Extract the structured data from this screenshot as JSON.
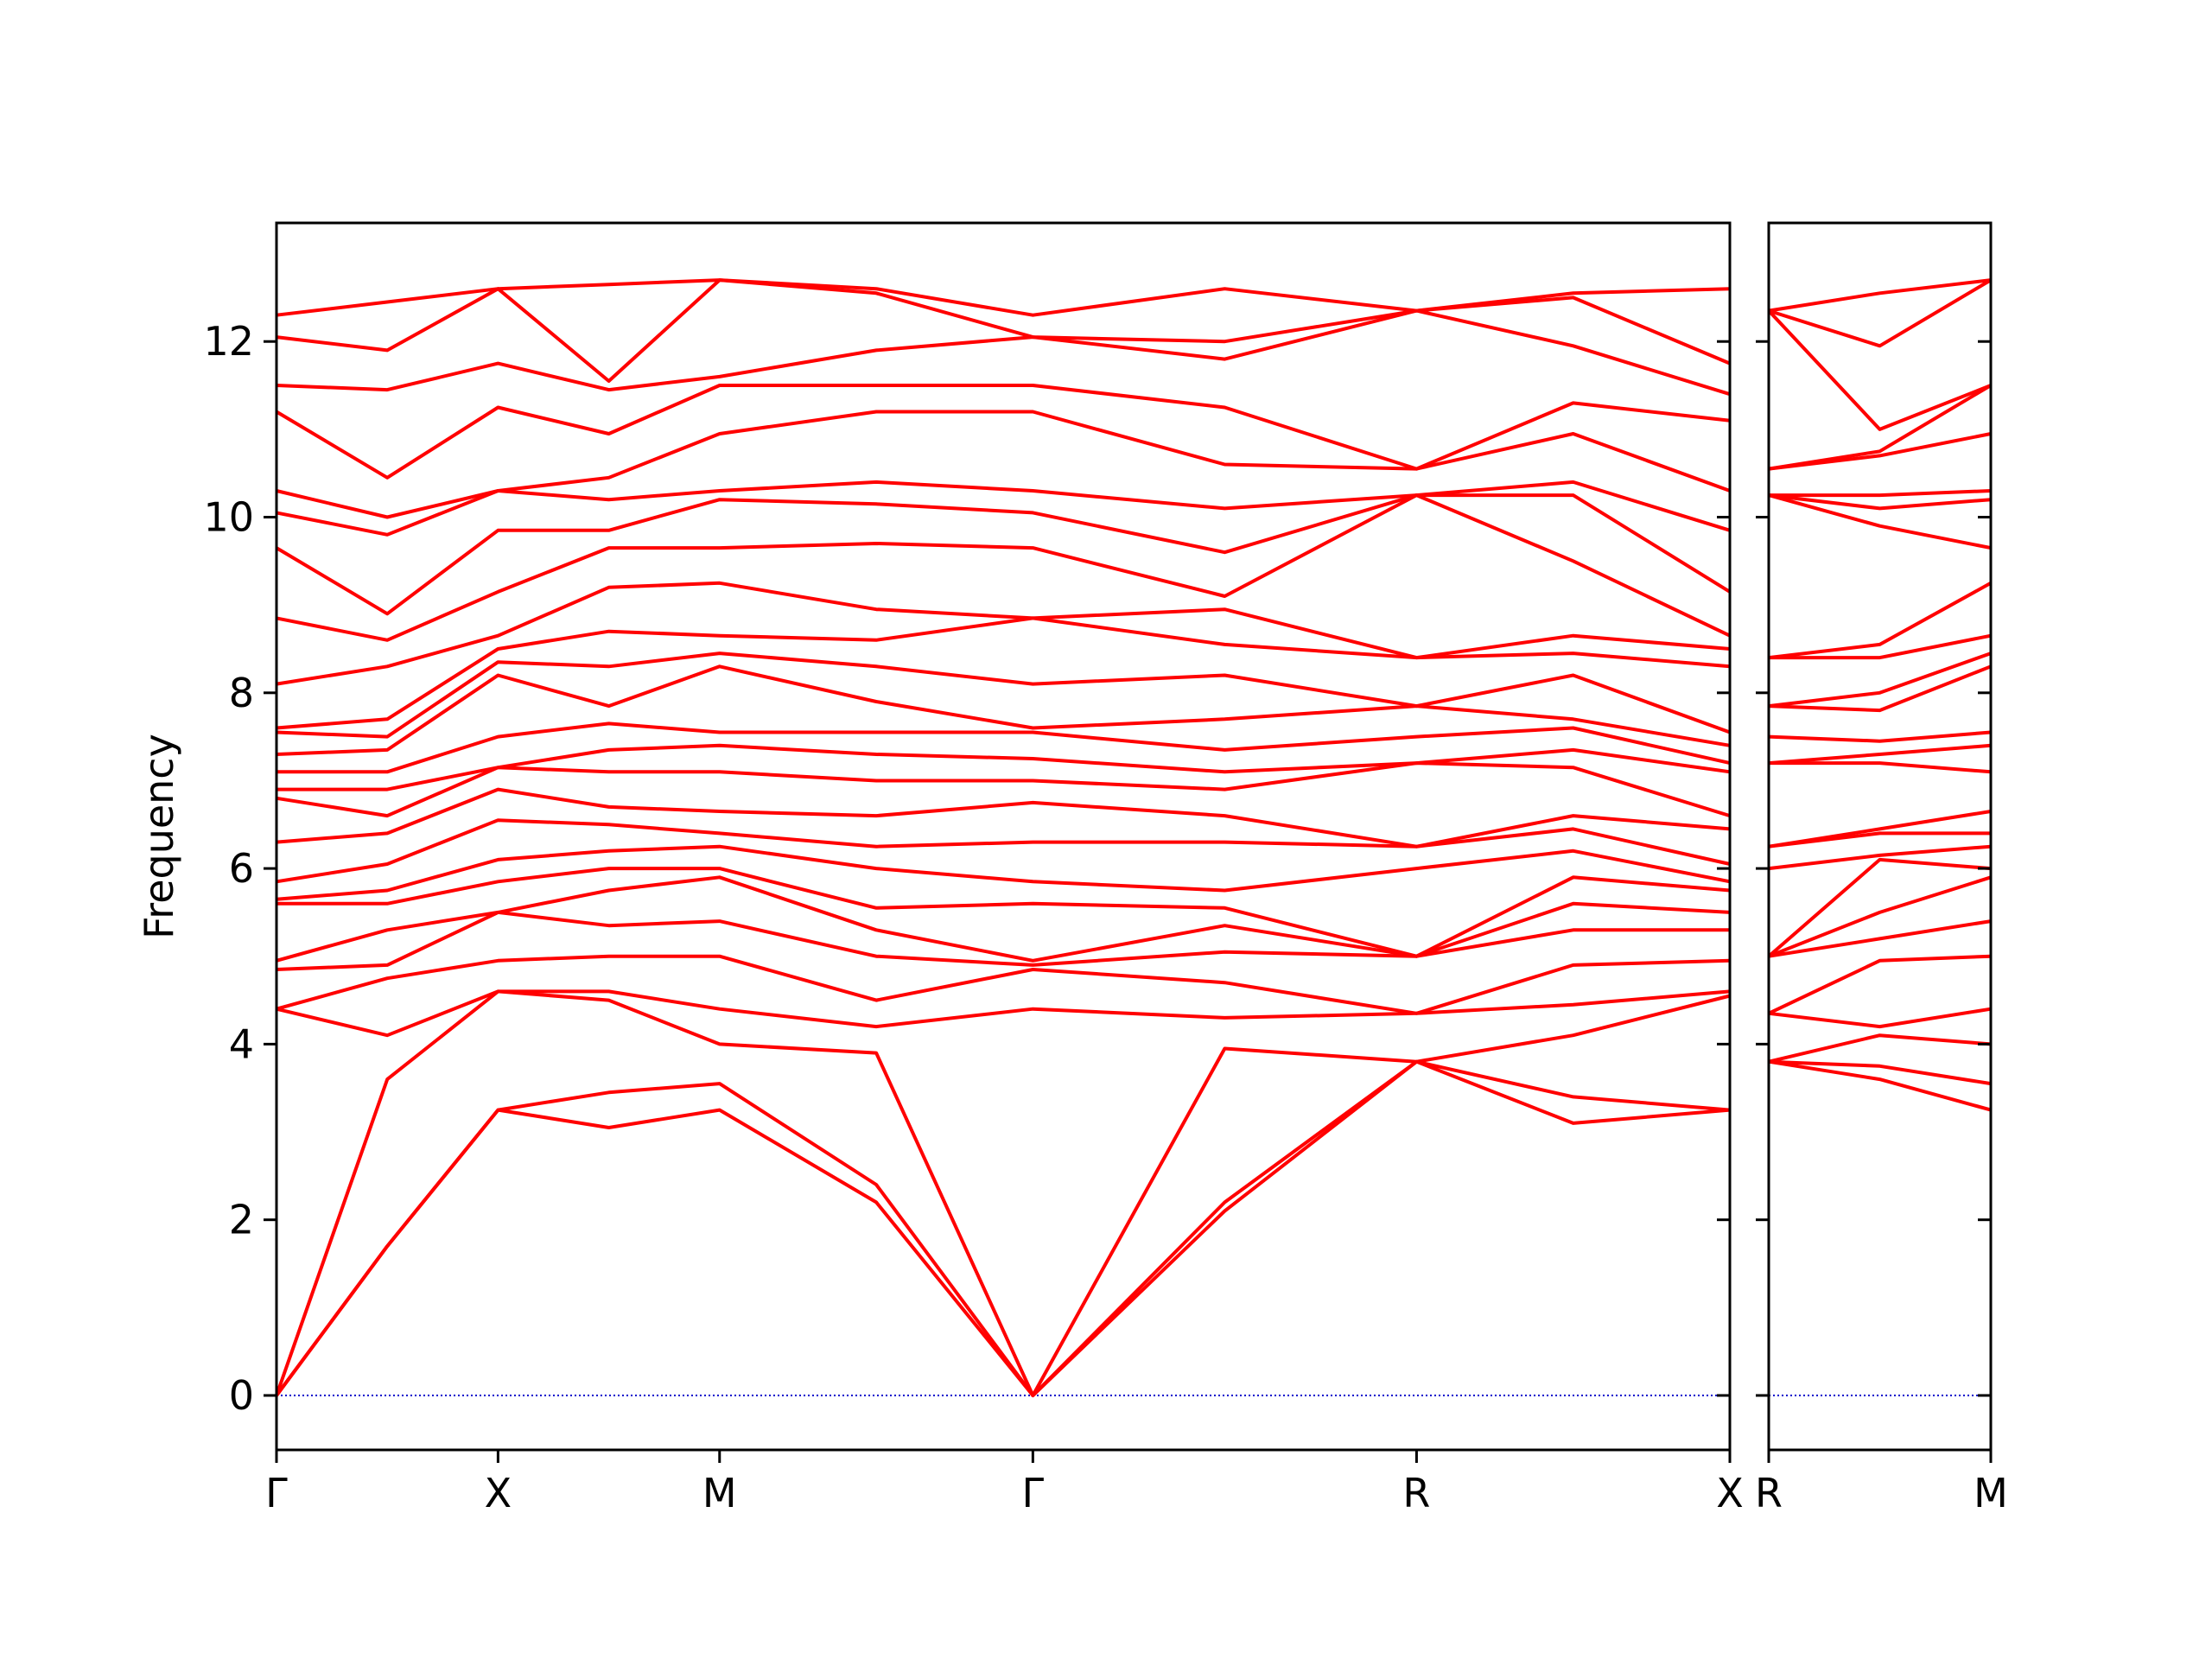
{
  "chart_data": [
    {
      "type": "line",
      "ylabel": "Frequency",
      "color": "#ff0000",
      "hline": 0,
      "hline_color": "#0000cc",
      "xlim": [
        0,
        3.2802
      ],
      "ylim": [
        -0.62,
        13.35
      ],
      "yticks": [
        0,
        2,
        4,
        6,
        8,
        10,
        12
      ],
      "xticks": [
        {
          "value": 0,
          "label": "Γ"
        },
        {
          "value": 0.5,
          "label": "X"
        },
        {
          "value": 1.0,
          "label": "M"
        },
        {
          "value": 1.7071,
          "label": "Γ"
        },
        {
          "value": 2.5731,
          "label": "R"
        },
        {
          "value": 3.2802,
          "label": "X"
        }
      ],
      "x": [
        0,
        0.25,
        0.5,
        0.75,
        1.0,
        1.3536,
        1.7071,
        2.1401,
        2.5731,
        2.9267,
        3.2802
      ],
      "values": [
        [
          0,
          0,
          0,
          4.4,
          4.4,
          4.85,
          4.95,
          5.6,
          5.65,
          5.85,
          6.3,
          6.8,
          6.9,
          7.1,
          7.3,
          7.55,
          7.6,
          8.1,
          8.85,
          9.65,
          10.05,
          10.3,
          11.2,
          11.5,
          12.05,
          12.3
        ],
        [
          1.7,
          1.7,
          3.6,
          4.1,
          4.75,
          4.9,
          5.3,
          5.6,
          5.75,
          6.05,
          6.4,
          6.6,
          6.9,
          7.1,
          7.35,
          7.5,
          7.7,
          8.3,
          8.6,
          8.9,
          9.8,
          10.0,
          10.45,
          11.45,
          11.9,
          12.45
        ],
        [
          3.25,
          3.25,
          4.6,
          4.6,
          4.95,
          5.5,
          5.5,
          5.85,
          6.1,
          6.55,
          6.9,
          7.15,
          7.15,
          7.5,
          8.2,
          8.35,
          8.5,
          8.65,
          9.15,
          9.85,
          10.3,
          10.3,
          11.25,
          11.75,
          12.6,
          12.6
        ],
        [
          3.05,
          3.45,
          4.5,
          4.6,
          5.0,
          5.35,
          5.75,
          6.0,
          6.2,
          6.5,
          6.7,
          7.1,
          7.35,
          7.65,
          7.85,
          8.3,
          8.7,
          9.2,
          9.65,
          9.85,
          10.2,
          10.45,
          10.95,
          11.45,
          11.55,
          12.65
        ],
        [
          3.25,
          3.55,
          4.0,
          4.4,
          5.0,
          5.4,
          5.9,
          6.0,
          6.25,
          6.4,
          6.65,
          7.1,
          7.4,
          7.55,
          8.3,
          8.45,
          8.65,
          9.25,
          9.65,
          10.2,
          10.3,
          10.95,
          11.5,
          11.6,
          12.7,
          12.7
        ],
        [
          2.2,
          2.4,
          3.9,
          4.2,
          4.5,
          5.0,
          5.3,
          5.55,
          6.0,
          6.25,
          6.6,
          7.0,
          7.3,
          7.55,
          7.9,
          8.3,
          8.6,
          8.95,
          9.7,
          10.15,
          10.4,
          11.2,
          11.5,
          11.9,
          12.55,
          12.6
        ],
        [
          0,
          0,
          0,
          4.4,
          4.85,
          4.9,
          4.95,
          5.6,
          5.85,
          6.3,
          6.75,
          7.0,
          7.25,
          7.55,
          7.6,
          8.1,
          8.85,
          8.85,
          9.65,
          10.05,
          10.3,
          11.2,
          11.5,
          12.05,
          12.05,
          12.3
        ],
        [
          2.1,
          2.2,
          3.95,
          4.3,
          4.7,
          5.05,
          5.35,
          5.55,
          5.75,
          6.3,
          6.6,
          6.9,
          7.1,
          7.35,
          7.7,
          8.2,
          8.55,
          8.95,
          9.1,
          9.6,
          10.1,
          10.6,
          11.25,
          11.8,
          12.0,
          12.6
        ],
        [
          3.8,
          3.8,
          3.8,
          4.35,
          4.35,
          5.0,
          5.0,
          5.0,
          6.0,
          6.25,
          6.25,
          7.2,
          7.2,
          7.5,
          7.85,
          7.85,
          8.4,
          8.4,
          10.25,
          10.25,
          10.25,
          10.55,
          10.55,
          12.35,
          12.35,
          12.35
        ],
        [
          3.1,
          3.4,
          4.1,
          4.45,
          4.9,
          5.3,
          5.6,
          5.9,
          6.2,
          6.45,
          6.6,
          7.15,
          7.35,
          7.6,
          7.7,
          8.2,
          8.45,
          8.65,
          9.5,
          10.25,
          10.4,
          10.95,
          11.3,
          11.95,
          12.5,
          12.55
        ],
        [
          3.25,
          3.25,
          4.55,
          4.6,
          4.95,
          5.3,
          5.5,
          5.75,
          5.85,
          6.05,
          6.45,
          6.6,
          7.1,
          7.2,
          7.4,
          7.55,
          8.3,
          8.5,
          8.65,
          9.15,
          9.85,
          10.3,
          11.1,
          11.4,
          11.75,
          12.6
        ]
      ]
    },
    {
      "type": "line",
      "color": "#ff0000",
      "hline": 0,
      "hline_color": "#0000cc",
      "xlim": [
        0,
        0.5
      ],
      "ylim": [
        -0.62,
        13.35
      ],
      "yticks": [
        0,
        2,
        4,
        6,
        8,
        10,
        12
      ],
      "xticks": [
        {
          "value": 0,
          "label": "R"
        },
        {
          "value": 0.5,
          "label": "M"
        }
      ],
      "x": [
        0,
        0.25,
        0.5
      ],
      "values": [
        [
          3.8,
          3.8,
          3.8,
          4.35,
          4.35,
          5.0,
          5.0,
          5.0,
          6.0,
          6.25,
          6.25,
          7.2,
          7.2,
          7.5,
          7.85,
          7.85,
          8.4,
          8.4,
          10.25,
          10.25,
          10.25,
          10.55,
          10.55,
          12.35,
          12.35,
          12.35
        ],
        [
          3.6,
          3.75,
          4.1,
          4.2,
          4.95,
          5.2,
          5.5,
          6.1,
          6.15,
          6.4,
          6.45,
          7.2,
          7.3,
          7.45,
          7.8,
          8.0,
          8.4,
          8.55,
          9.9,
          10.1,
          10.25,
          10.7,
          10.75,
          11.0,
          11.95,
          12.55
        ],
        [
          3.25,
          3.55,
          4.0,
          4.4,
          5.0,
          5.4,
          5.9,
          6.0,
          6.25,
          6.4,
          6.65,
          7.1,
          7.4,
          7.55,
          8.3,
          8.45,
          8.65,
          9.25,
          9.65,
          10.2,
          10.3,
          10.95,
          11.5,
          11.5,
          12.7,
          12.7
        ]
      ]
    }
  ]
}
